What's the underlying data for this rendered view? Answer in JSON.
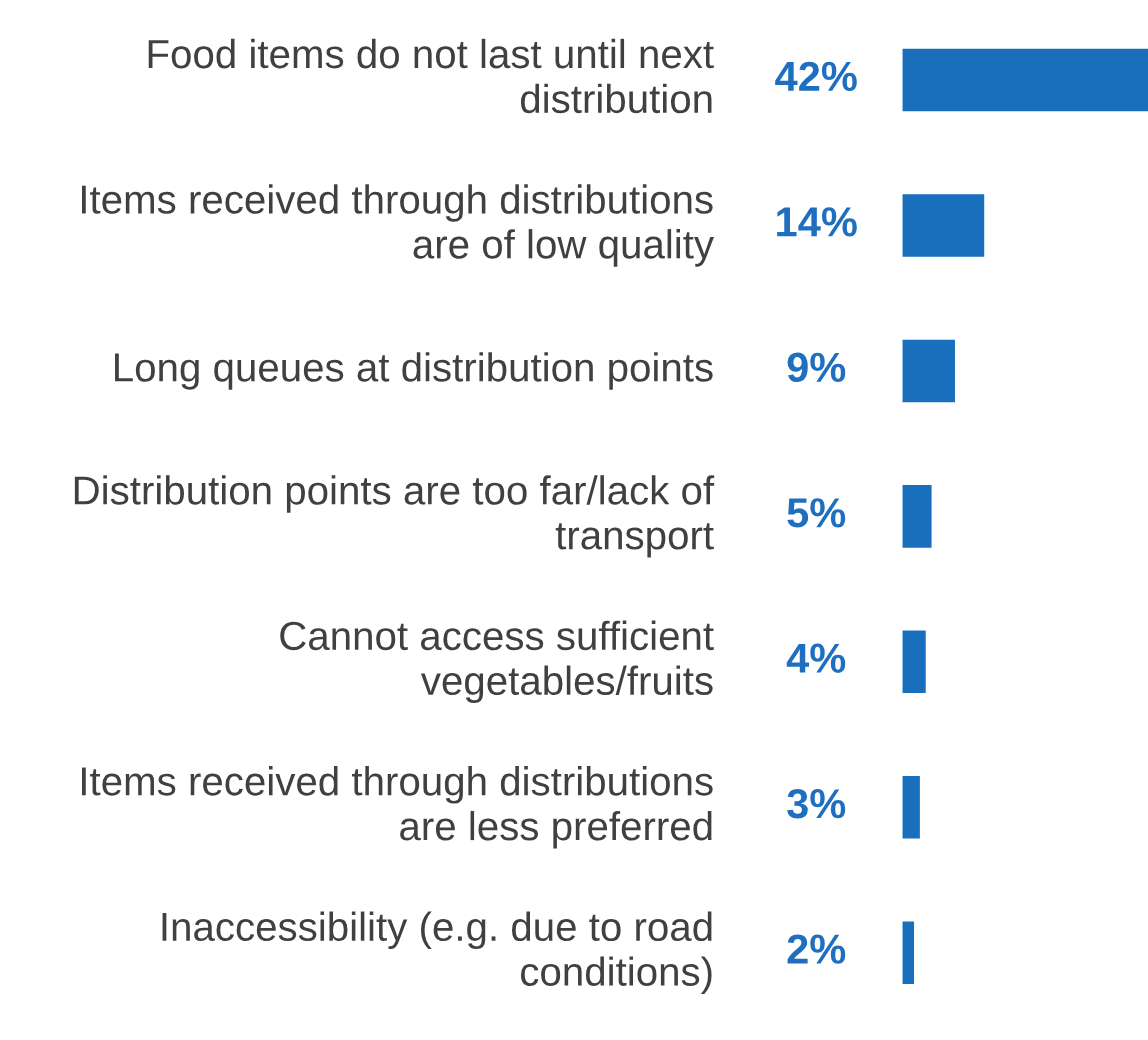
{
  "chart_data": {
    "type": "bar",
    "orientation": "horizontal",
    "categories": [
      "Food items do not last until next\ndistribution",
      "Items received through distributions\nare of low quality",
      "Long queues at distribution points",
      "Distribution points are too far/lack of\ntransport",
      "Cannot access sufficient\nvegetables/fruits",
      "Items received through distributions\nare less preferred",
      "Inaccessibility (e.g. due to road\nconditions)"
    ],
    "values": [
      42,
      14,
      9,
      5,
      4,
      3,
      2
    ],
    "value_labels": [
      "42%",
      "14%",
      "9%",
      "5%",
      "4%",
      "3%",
      "2%"
    ],
    "color": "#1a6fbd"
  }
}
